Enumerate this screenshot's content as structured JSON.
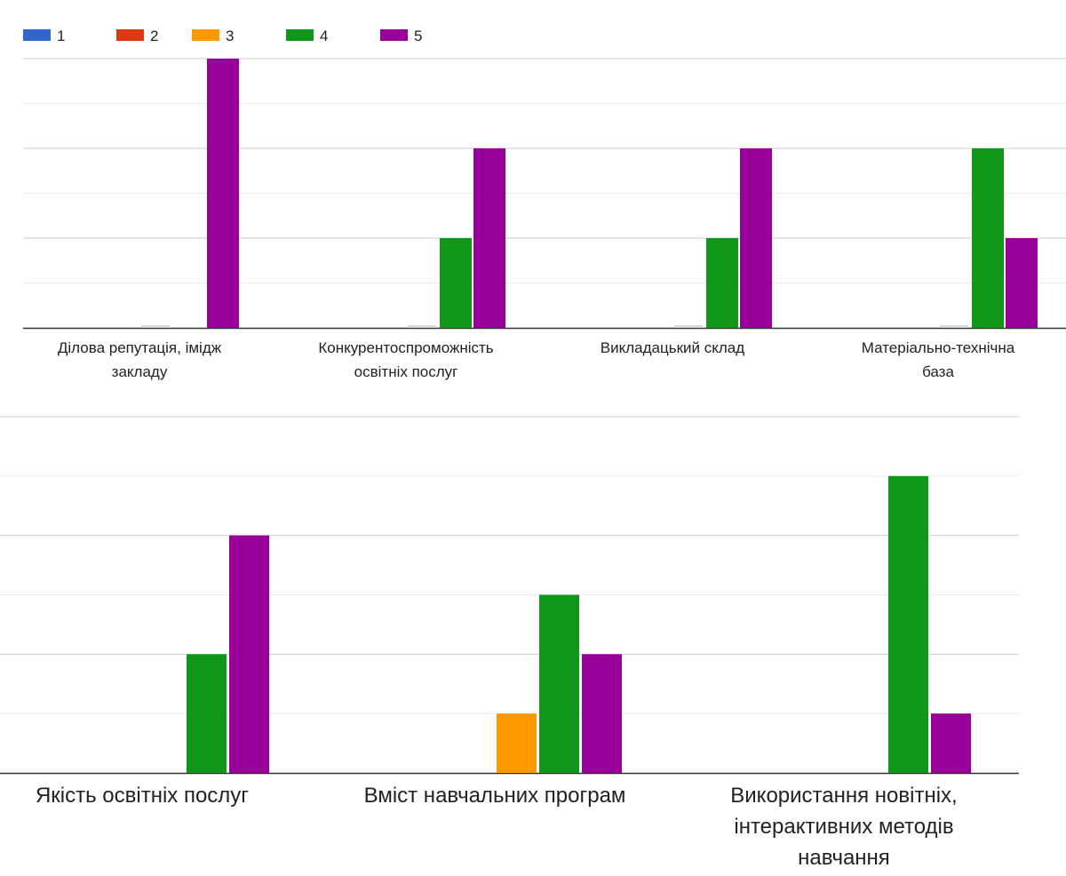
{
  "chart_data": [
    {
      "type": "bar",
      "legend": {
        "position": "top-left",
        "items": [
          {
            "label": "1",
            "color": "#3366cc"
          },
          {
            "label": "2",
            "color": "#dc3912"
          },
          {
            "label": "3",
            "color": "#ff9900"
          },
          {
            "label": "4",
            "color": "#109618"
          },
          {
            "label": "5",
            "color": "#990099"
          }
        ]
      },
      "categories": [
        [
          "Ділова репутація, імідж",
          "закладу"
        ],
        [
          "Конкурентоспроможність",
          "освітніх послуг"
        ],
        [
          "Викладацький склад"
        ],
        [
          "Матеріально-технічна",
          "база"
        ]
      ],
      "series": [
        {
          "name": "1",
          "color": "#3366cc",
          "values": [
            0,
            0,
            0,
            0
          ]
        },
        {
          "name": "2",
          "color": "#dc3912",
          "values": [
            0,
            0,
            0,
            0
          ]
        },
        {
          "name": "3",
          "color": "#ff9900",
          "values": [
            0,
            0,
            0,
            0
          ]
        },
        {
          "name": "4",
          "color": "#109618",
          "values": [
            0,
            2,
            2,
            4
          ]
        },
        {
          "name": "5",
          "color": "#990099",
          "values": [
            6,
            4,
            4,
            2
          ]
        }
      ],
      "ylim": [
        0,
        6
      ],
      "gridlines": 6,
      "grid": true
    },
    {
      "type": "bar",
      "categories": [
        [
          "Якість освітніх послуг"
        ],
        [
          "Вміст навчальних програм"
        ],
        [
          "Використання новітніх,",
          "інтерактивних методів",
          "навчання"
        ]
      ],
      "series": [
        {
          "name": "1",
          "color": "#3366cc",
          "values": [
            0,
            0,
            0
          ]
        },
        {
          "name": "2",
          "color": "#dc3912",
          "values": [
            0,
            0,
            0
          ]
        },
        {
          "name": "3",
          "color": "#ff9900",
          "values": [
            0,
            1,
            0
          ]
        },
        {
          "name": "4",
          "color": "#109618",
          "values": [
            2,
            3,
            5
          ]
        },
        {
          "name": "5",
          "color": "#990099",
          "values": [
            4,
            2,
            1
          ]
        }
      ],
      "ylim": [
        0,
        6
      ],
      "gridlines": 6,
      "grid": true
    }
  ]
}
